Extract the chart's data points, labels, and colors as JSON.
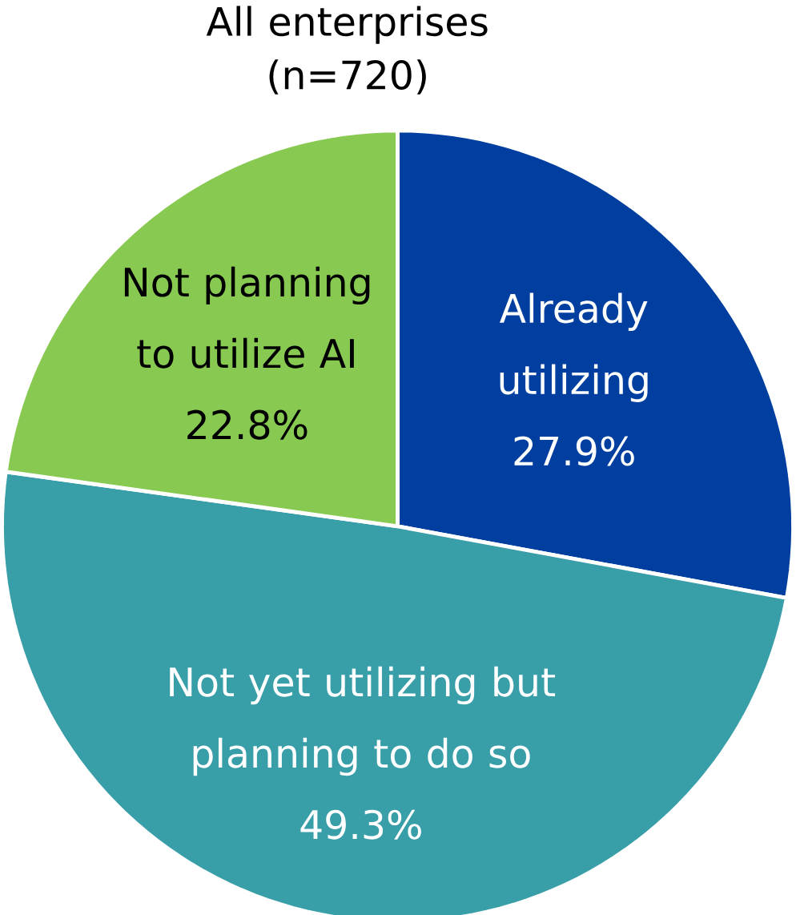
{
  "chart_data": {
    "type": "pie",
    "title": "All enterprises (n=720)",
    "categories": [
      "Already utilizing",
      "Not yet utilizing but planning to do so",
      "Not planning to utilize AI"
    ],
    "values": [
      27.9,
      49.3,
      22.8
    ],
    "value_labels": [
      "27.9%",
      "49.3%",
      "22.8%"
    ],
    "colors": [
      "#003ea0",
      "#389ea8",
      "#88c951"
    ]
  }
}
